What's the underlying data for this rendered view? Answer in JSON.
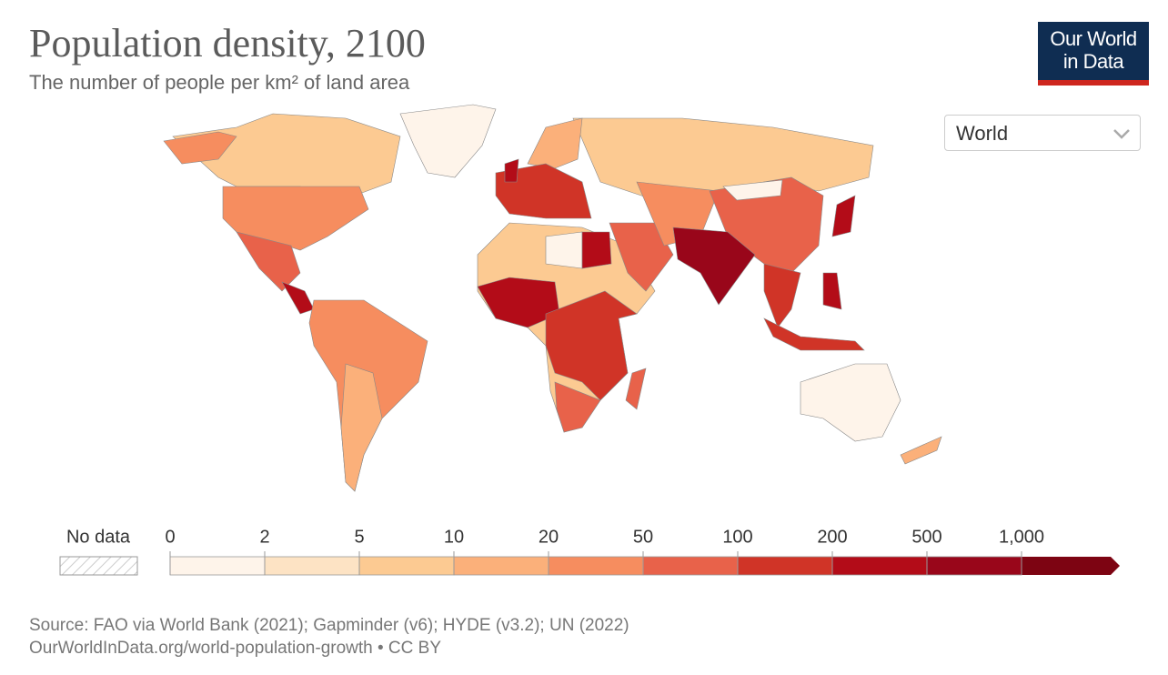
{
  "header": {
    "title": "Population density, 2100",
    "subtitle": "The number of people per km² of land area"
  },
  "logo": {
    "line1": "Our World",
    "line2": "in Data"
  },
  "selector": {
    "value": "World"
  },
  "legend": {
    "no_data": "No data",
    "ticks": [
      0,
      2,
      5,
      10,
      20,
      50,
      100,
      200,
      500,
      {
        "value": 1000,
        "label": "1,000"
      }
    ],
    "colors": [
      "#fef4ea",
      "#fde3c4",
      "#fcca92",
      "#fbb07a",
      "#f68d5f",
      "#e8624a",
      "#d03427",
      "#b30c18",
      "#99061a",
      "#7d0412"
    ]
  },
  "footer": {
    "source": "Source: FAO via World Bank (2021); Gapminder (v6); HYDE (v3.2); UN (2022)",
    "license": "OurWorldInData.org/world-population-growth • CC BY"
  }
}
